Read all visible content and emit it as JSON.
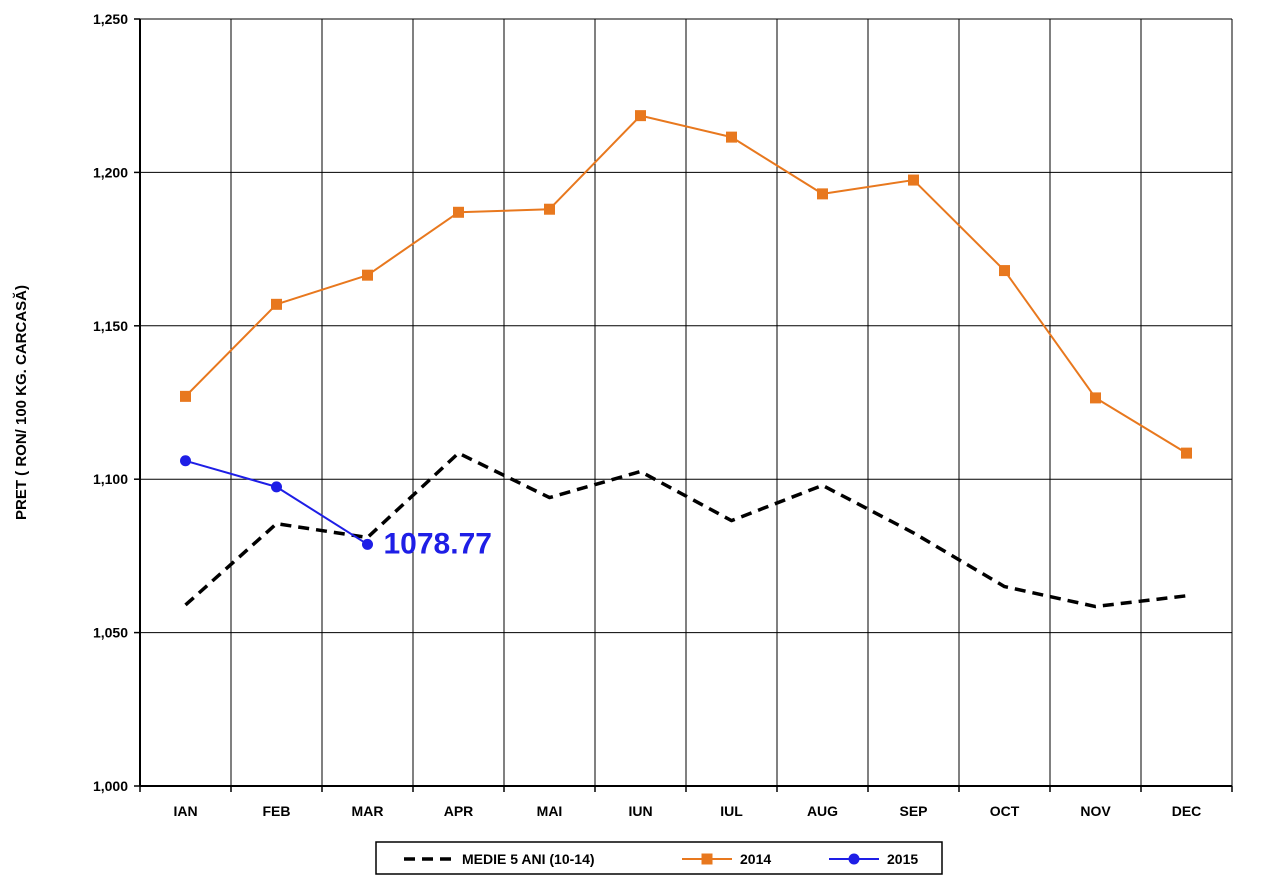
{
  "chart_data": {
    "type": "line",
    "title": "",
    "xlabel": "",
    "ylabel": "PRET ( RON/ 100 KG. CARCASĂ)",
    "categories": [
      "IAN",
      "FEB",
      "MAR",
      "APR",
      "MAI",
      "IUN",
      "IUL",
      "AUG",
      "SEP",
      "OCT",
      "NOV",
      "DEC"
    ],
    "ylim": [
      1000,
      1250
    ],
    "yticks": [
      1000,
      1050,
      1100,
      1150,
      1200,
      1250
    ],
    "ytick_labels": [
      "1,000",
      "1,050",
      "1,100",
      "1,150",
      "1,200",
      "1,250"
    ],
    "grid": true,
    "legend_position": "bottom",
    "series": [
      {
        "name": "MEDIE 5 ANI (10-14)",
        "color": "#000000",
        "style": "dashed",
        "marker": "none",
        "values": [
          1059,
          1085.5,
          1081,
          1108.5,
          1094,
          1102.5,
          1086.5,
          1098,
          1082.5,
          1065,
          1058.5,
          1062
        ]
      },
      {
        "name": "2014",
        "color": "#E8781E",
        "style": "solid",
        "marker": "square",
        "values": [
          1127,
          1157,
          1166.5,
          1187,
          1188,
          1218.5,
          1211.5,
          1193,
          1197.5,
          1168,
          1126.5,
          1108.5
        ]
      },
      {
        "name": "2015",
        "color": "#1E1EE6",
        "style": "solid",
        "marker": "circle",
        "values": [
          1106,
          1097.5,
          1078.77,
          null,
          null,
          null,
          null,
          null,
          null,
          null,
          null,
          null
        ]
      }
    ],
    "annotations": [
      {
        "text": "1078.77",
        "series": "2015",
        "category": "MAR",
        "color": "#1E1EE6"
      }
    ]
  }
}
